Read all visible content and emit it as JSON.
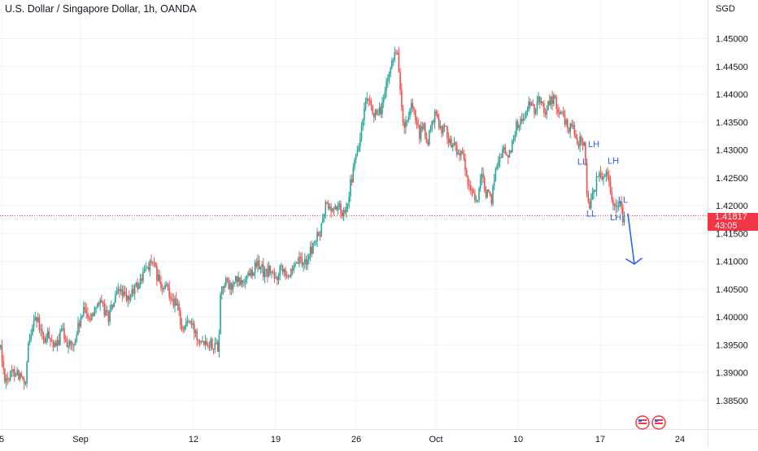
{
  "chart_data": {
    "type": "candlestick",
    "title": "U.S. Dollar / Singapore Dollar, 1h, OANDA",
    "ylabel": "SGD",
    "ylim": [
      1.382,
      1.4535
    ],
    "y_ticks": [
      "1.45000",
      "1.44500",
      "1.44000",
      "1.43500",
      "1.43000",
      "1.42500",
      "1.42000",
      "1.41500",
      "1.41000",
      "1.40500",
      "1.40000",
      "1.39500",
      "1.39000",
      "1.38500"
    ],
    "x_ticks": [
      "5",
      "Sep",
      "12",
      "19",
      "26",
      "Oct",
      "10",
      "17",
      "24"
    ],
    "grid": true,
    "current_price": {
      "value": 1.41817,
      "label": "1.41817",
      "countdown": "43:05"
    },
    "colors": {
      "up": "#26a69a",
      "down": "#ef5350",
      "annotation": "#2962ff",
      "price_line": "#f23645"
    },
    "path_nodes": [
      [
        0,
        1.3945
      ],
      [
        4,
        1.3895
      ],
      [
        10,
        1.389
      ],
      [
        18,
        1.3905
      ],
      [
        26,
        1.389
      ],
      [
        30,
        1.3865
      ],
      [
        34,
        1.3945
      ],
      [
        41,
        1.4005
      ],
      [
        47,
        1.3985
      ],
      [
        53,
        1.3955
      ],
      [
        60,
        1.397
      ],
      [
        67,
        1.394
      ],
      [
        75,
        1.3975
      ],
      [
        82,
        1.3955
      ],
      [
        89,
        1.3945
      ],
      [
        96,
        1.3985
      ],
      [
        104,
        1.4015
      ],
      [
        111,
        1.3995
      ],
      [
        118,
        1.403
      ],
      [
        126,
        1.4015
      ],
      [
        133,
        1.4
      ],
      [
        140,
        1.403
      ],
      [
        148,
        1.405
      ],
      [
        155,
        1.4025
      ],
      [
        162,
        1.4045
      ],
      [
        170,
        1.406
      ],
      [
        178,
        1.4085
      ],
      [
        185,
        1.41
      ],
      [
        192,
        1.4075
      ],
      [
        199,
        1.4045
      ],
      [
        205,
        1.4055
      ],
      [
        212,
        1.403
      ],
      [
        218,
        1.4015
      ],
      [
        224,
        1.3975
      ],
      [
        230,
        1.3995
      ],
      [
        236,
        1.398
      ],
      [
        243,
        1.3965
      ],
      [
        250,
        1.396
      ],
      [
        257,
        1.3955
      ],
      [
        264,
        1.395
      ],
      [
        268,
        1.3945
      ],
      [
        270,
        1.4045
      ],
      [
        276,
        1.4065
      ],
      [
        283,
        1.405
      ],
      [
        289,
        1.4065
      ],
      [
        296,
        1.406
      ],
      [
        303,
        1.4075
      ],
      [
        310,
        1.4085
      ],
      [
        318,
        1.4095
      ],
      [
        325,
        1.4075
      ],
      [
        331,
        1.4085
      ],
      [
        338,
        1.4065
      ],
      [
        345,
        1.4095
      ],
      [
        352,
        1.408
      ],
      [
        359,
        1.4075
      ],
      [
        365,
        1.41
      ],
      [
        372,
        1.4095
      ],
      [
        379,
        1.411
      ],
      [
        386,
        1.4135
      ],
      [
        393,
        1.415
      ],
      [
        400,
        1.4205
      ],
      [
        407,
        1.419
      ],
      [
        414,
        1.42
      ],
      [
        421,
        1.4185
      ],
      [
        428,
        1.422
      ],
      [
        435,
        1.4275
      ],
      [
        442,
        1.432
      ],
      [
        449,
        1.4385
      ],
      [
        456,
        1.4375
      ],
      [
        463,
        1.4355
      ],
      [
        470,
        1.4385
      ],
      [
        476,
        1.4425
      ],
      [
        482,
        1.4465
      ],
      [
        485,
        1.4485
      ],
      [
        487,
        1.4475
      ],
      [
        489,
        1.446
      ],
      [
        492,
        1.4395
      ],
      [
        495,
        1.434
      ],
      [
        500,
        1.4345
      ],
      [
        505,
        1.4375
      ],
      [
        510,
        1.4355
      ],
      [
        515,
        1.4325
      ],
      [
        520,
        1.4345
      ],
      [
        525,
        1.4305
      ],
      [
        530,
        1.4355
      ],
      [
        536,
        1.436
      ],
      [
        542,
        1.434
      ],
      [
        548,
        1.4335
      ],
      [
        554,
        1.431
      ],
      [
        560,
        1.4305
      ],
      [
        566,
        1.429
      ],
      [
        570,
        1.4275
      ],
      [
        575,
        1.423
      ],
      [
        580,
        1.4225
      ],
      [
        586,
        1.421
      ],
      [
        591,
        1.425
      ],
      [
        597,
        1.4225
      ],
      [
        603,
        1.4205
      ],
      [
        608,
        1.4265
      ],
      [
        613,
        1.4285
      ],
      [
        618,
        1.4305
      ],
      [
        623,
        1.4285
      ],
      [
        628,
        1.4305
      ],
      [
        633,
        1.434
      ],
      [
        638,
        1.435
      ],
      [
        644,
        1.436
      ],
      [
        650,
        1.438
      ],
      [
        656,
        1.437
      ],
      [
        662,
        1.4395
      ],
      [
        668,
        1.437
      ],
      [
        674,
        1.4385
      ],
      [
        680,
        1.4395
      ],
      [
        686,
        1.437
      ],
      [
        692,
        1.4355
      ],
      [
        698,
        1.434
      ],
      [
        703,
        1.4345
      ],
      [
        707,
        1.433
      ],
      [
        710,
        1.4305
      ],
      [
        714,
        1.432
      ],
      [
        718,
        1.4305
      ],
      [
        721,
        1.422
      ],
      [
        724,
        1.4205
      ],
      [
        729,
        1.422
      ],
      [
        733,
        1.4245
      ],
      [
        737,
        1.4265
      ],
      [
        741,
        1.425
      ],
      [
        745,
        1.427
      ],
      [
        749,
        1.4235
      ],
      [
        753,
        1.421
      ],
      [
        757,
        1.4195
      ],
      [
        761,
        1.4205
      ],
      [
        765,
        1.4175
      ],
      [
        768,
        1.41817
      ]
    ],
    "annotations": [
      {
        "text": "LH",
        "x": 730,
        "y": 1.4305
      },
      {
        "text": "LL",
        "x": 716,
        "y": 1.4274
      },
      {
        "text": "LH",
        "x": 754,
        "y": 1.4275
      },
      {
        "text": "LL",
        "x": 766,
        "y": 1.4205
      },
      {
        "text": "LL",
        "x": 727,
        "y": 1.418
      },
      {
        "text": "LH",
        "x": 757,
        "y": 1.4174
      }
    ],
    "projection_arrow": {
      "from": [
        772,
        1.4185
      ],
      "to": [
        780,
        1.4095
      ]
    },
    "logo_icons": [
      "flag-icon-us",
      "flag-icon-us"
    ]
  }
}
